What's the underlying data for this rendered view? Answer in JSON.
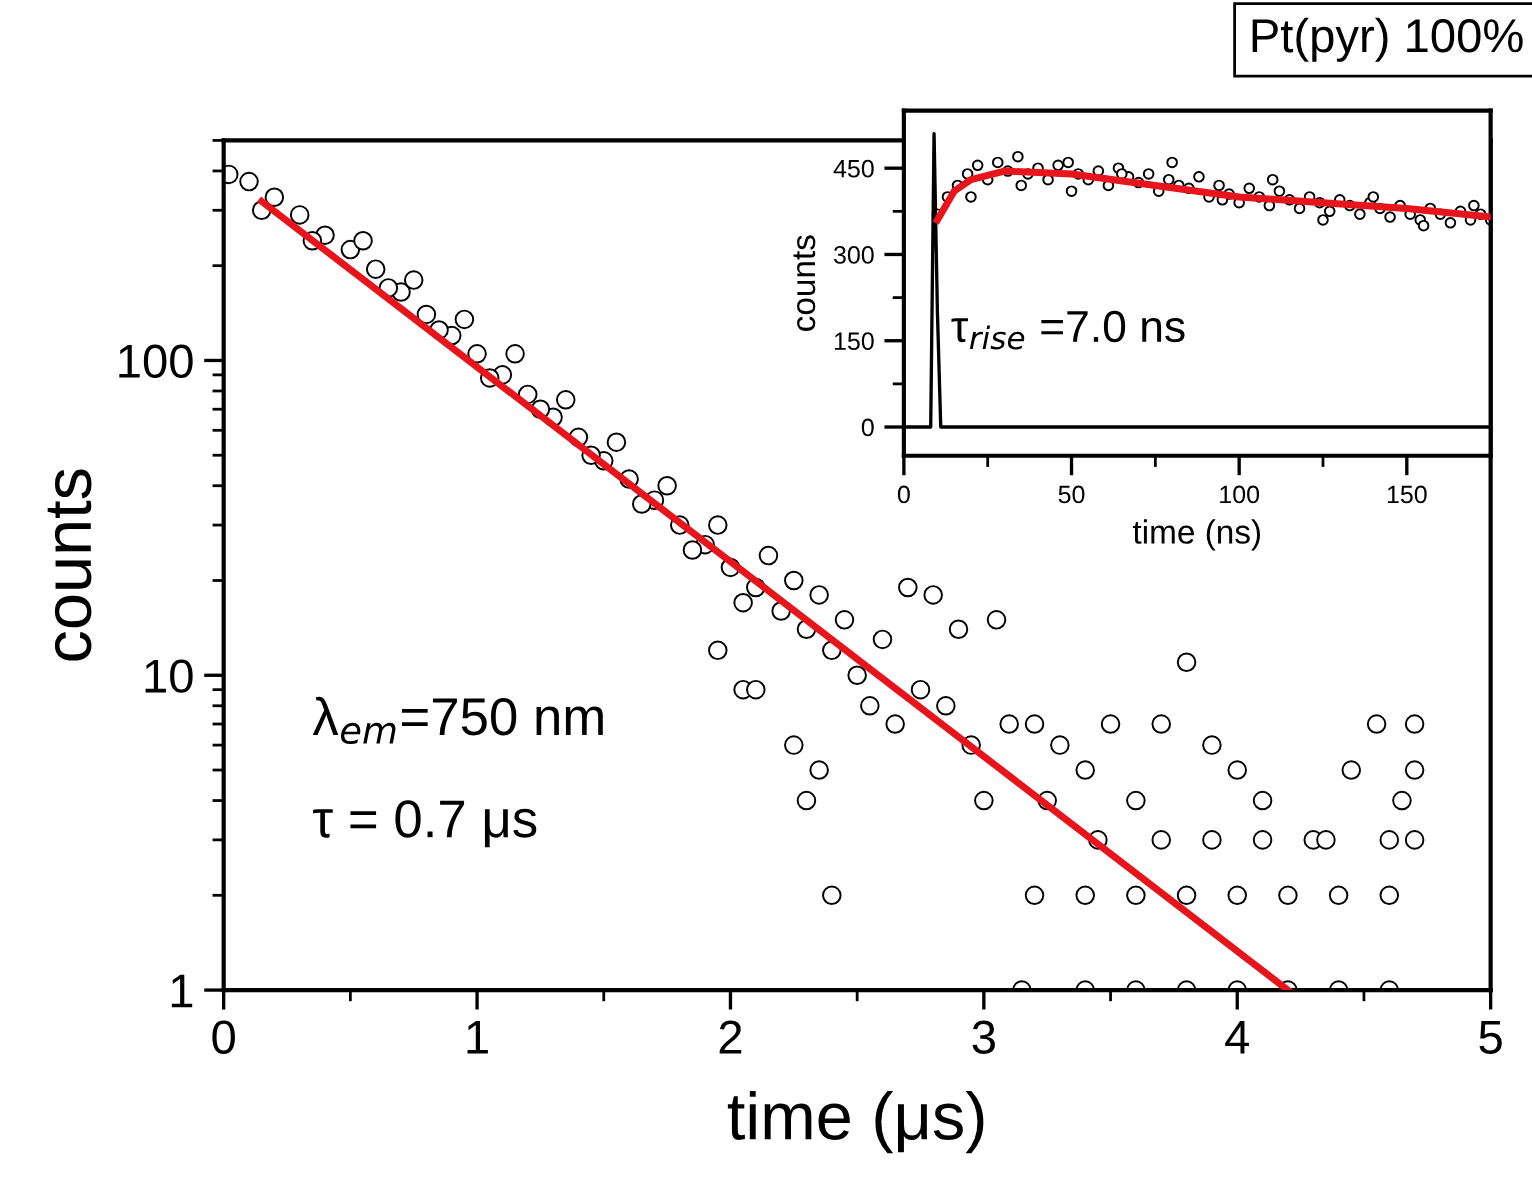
{
  "chart_data": [
    {
      "type": "scatter",
      "xlabel": "time (μs)",
      "ylabel": "counts",
      "log": "y",
      "xlim": [
        0,
        5
      ],
      "xticks": [
        0,
        1,
        2,
        3,
        4,
        5
      ],
      "ylim": [
        1,
        500
      ],
      "yticks": [
        1,
        10,
        100
      ],
      "annotations": [
        "Pt(pyr) 100%",
        "λ$_{em}$=750 nm",
        "τ = 0.7 μs"
      ],
      "series": [
        {
          "marker": "circle",
          "color": "#000000",
          "x": [
            0.02,
            0.1,
            0.2,
            0.3,
            0.4,
            0.5,
            0.6,
            0.7,
            0.8,
            0.9,
            1.0,
            1.1,
            1.2,
            1.3,
            1.4,
            1.5,
            1.6,
            1.7,
            1.8,
            1.9,
            2.0,
            2.1,
            2.2,
            2.3,
            2.4,
            2.5,
            0.15,
            0.35,
            0.55,
            0.65,
            0.75,
            0.85,
            0.95,
            1.05,
            1.15,
            1.25,
            1.35,
            1.45,
            1.55,
            1.65,
            1.75,
            1.85,
            1.95,
            2.05,
            2.15,
            2.25,
            2.35,
            2.45,
            2.6,
            2.7,
            2.8,
            2.9,
            3.05,
            2.55,
            2.65,
            2.75,
            2.85,
            2.95,
            3.1,
            3.2,
            3.3,
            3.4,
            3.5,
            3.6,
            3.7,
            3.8,
            3.9,
            4.0,
            4.1,
            4.3,
            4.45,
            4.55,
            4.7,
            4.7,
            4.65,
            3.0,
            3.25,
            3.45,
            3.7,
            3.9,
            4.1,
            4.35,
            4.6,
            4.7,
            3.2,
            3.4,
            3.6,
            3.8,
            4.0,
            4.2,
            4.4,
            4.6,
            2.4,
            2.3,
            2.25,
            2.35,
            3.15,
            3.4,
            3.6,
            3.8,
            4.0,
            4.2,
            4.4,
            4.6,
            2.05,
            2.1,
            1.95
          ],
          "values": [
            390,
            370,
            330,
            290,
            250,
            225,
            195,
            165,
            140,
            120,
            105,
            90,
            78,
            66,
            57,
            48,
            42,
            36,
            30,
            26,
            22,
            19,
            16,
            14,
            12,
            10,
            300,
            240,
            240,
            170,
            180,
            125,
            135,
            88,
            105,
            70,
            75,
            50,
            55,
            35,
            40,
            25,
            30,
            17,
            24,
            20,
            18,
            15,
            13,
            19,
            18,
            14,
            15,
            8,
            7,
            9,
            8,
            6,
            7,
            7,
            6,
            5,
            7,
            4,
            7,
            11,
            6,
            5,
            4,
            3,
            5,
            7,
            7,
            5,
            4,
            4,
            4,
            3,
            3,
            3,
            3,
            3,
            3,
            3,
            2,
            2,
            2,
            2,
            2,
            2,
            2,
            2,
            2,
            4,
            6,
            5,
            1,
            1,
            1,
            1,
            1,
            1,
            1,
            1,
            9,
            9,
            12
          ]
        },
        {
          "type": "line",
          "marker": "none",
          "color": "#e8141c",
          "x": [
            0.15,
            4.2
          ],
          "values": [
            320,
            1
          ]
        }
      ]
    },
    {
      "type": "scatter",
      "xlabel": "time (ns)",
      "ylabel": "counts",
      "xlim": [
        0,
        175
      ],
      "xticks": [
        0,
        50,
        100,
        150
      ],
      "ylim": [
        -50,
        550
      ],
      "yticks": [
        0,
        150,
        300,
        450
      ],
      "annotations": [
        "τ$_{rise}$ =7.0 ns"
      ],
      "series": [
        {
          "type": "line",
          "marker": "none",
          "color": "#000000",
          "x": [
            0,
            8,
            9,
            10,
            11,
            175
          ],
          "values": [
            0,
            0,
            510,
            200,
            0,
            0
          ]
        },
        {
          "marker": "circle",
          "color": "#000000",
          "x": [
            10,
            13,
            16,
            19,
            22,
            25,
            28,
            31,
            34,
            37,
            40,
            43,
            46,
            49,
            52,
            55,
            58,
            61,
            64,
            67,
            70,
            73,
            76,
            79,
            82,
            85,
            88,
            91,
            94,
            97,
            100,
            103,
            106,
            109,
            112,
            115,
            118,
            121,
            124,
            127,
            130,
            133,
            136,
            139,
            142,
            145,
            148,
            151,
            154,
            157,
            160,
            163,
            166,
            169,
            172,
            175,
            20,
            35,
            50,
            65,
            80,
            95,
            110,
            125,
            140,
            155,
            170
          ],
          "values": [
            370,
            400,
            420,
            440,
            455,
            430,
            460,
            445,
            470,
            440,
            450,
            430,
            455,
            460,
            440,
            430,
            445,
            420,
            450,
            435,
            425,
            440,
            410,
            430,
            420,
            415,
            435,
            400,
            420,
            405,
            390,
            415,
            400,
            385,
            410,
            395,
            380,
            400,
            390,
            375,
            395,
            385,
            370,
            390,
            380,
            365,
            385,
            370,
            360,
            380,
            370,
            355,
            375,
            360,
            370,
            360,
            400,
            420,
            410,
            440,
            460,
            395,
            430,
            360,
            400,
            350,
            385
          ]
        },
        {
          "type": "line",
          "marker": "none",
          "color": "#e8141c",
          "x": [
            10,
            15,
            20,
            30,
            50,
            75,
            100,
            125,
            150,
            175
          ],
          "values": [
            360,
            410,
            430,
            445,
            440,
            420,
            400,
            390,
            380,
            365
          ]
        }
      ]
    }
  ]
}
